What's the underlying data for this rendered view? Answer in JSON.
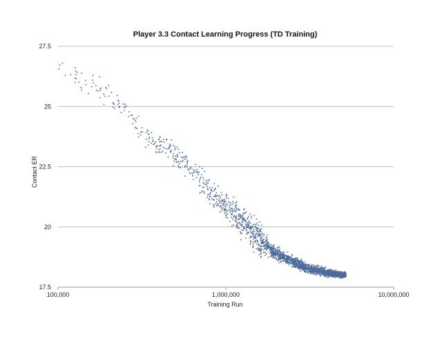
{
  "chart_data": {
    "type": "scatter",
    "title": "Player 3.3 Contact Learning Progress (TD Training)",
    "xlabel": "Training Run",
    "ylabel": "Contact ER",
    "xscale": "log",
    "xlim": [
      100000,
      10000000
    ],
    "ylim": [
      17.5,
      27.5
    ],
    "xticks": [
      100000,
      1000000,
      10000000
    ],
    "xtick_labels": [
      "100,000",
      "1,000,000",
      "10,000,000"
    ],
    "yticks": [
      17.5,
      20,
      22.5,
      25,
      27.5
    ],
    "ytick_labels": [
      "17.5",
      "20",
      "22.5",
      "25",
      "27.5"
    ],
    "grid": "horizontal",
    "legend": "none",
    "marker_color": "#4c6a9a",
    "trend": {
      "x": [
        100000,
        120000,
        150000,
        200000,
        250000,
        300000,
        350000,
        400000,
        450000,
        500000,
        600000,
        700000,
        800000,
        900000,
        1000000,
        1200000,
        1400000,
        1600000,
        1800000,
        2000000,
        2300000,
        2600000,
        3000000,
        3500000,
        4000000,
        4500000,
        5200000
      ],
      "y": [
        26.6,
        26.5,
        26.0,
        25.5,
        24.8,
        24.1,
        23.6,
        23.4,
        23.3,
        23.0,
        22.5,
        22.0,
        21.5,
        21.1,
        20.8,
        20.3,
        19.9,
        19.5,
        19.1,
        18.9,
        18.7,
        18.5,
        18.3,
        18.2,
        18.1,
        18.05,
        18.0
      ]
    },
    "spread": {
      "x": [
        100000,
        300000,
        500000,
        1000000,
        1600000,
        1800000,
        2600000,
        5200000
      ],
      "y": [
        0.35,
        0.3,
        0.35,
        0.4,
        0.45,
        0.2,
        0.15,
        0.08
      ]
    },
    "sample_count": 2400
  }
}
